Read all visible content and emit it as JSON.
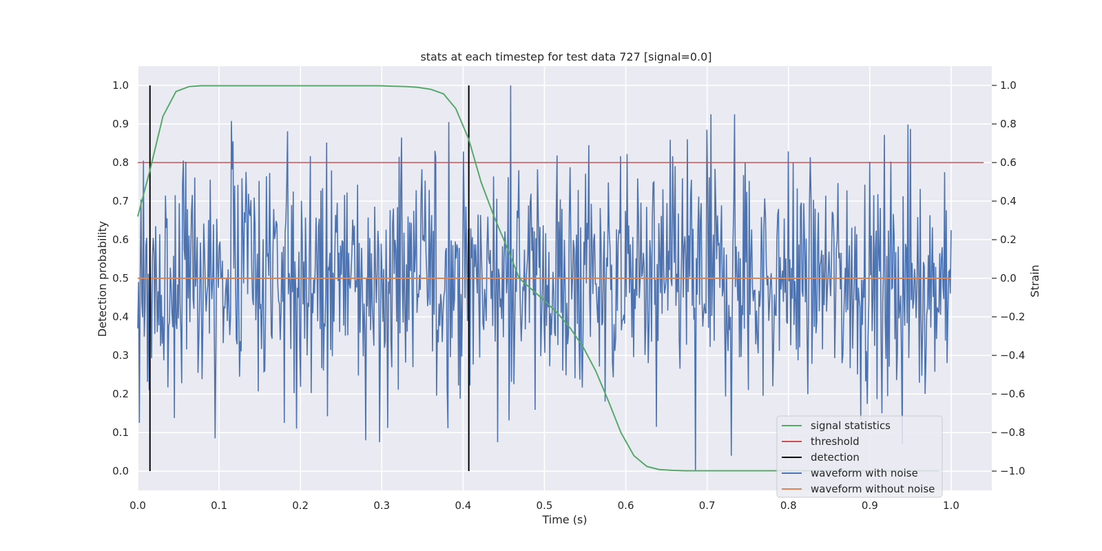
{
  "chart_data": {
    "type": "line",
    "title": "stats at each timestep for test data 727 [signal=0.0]",
    "xlabel": "Time (s)",
    "ylabel": "Detection probability",
    "y2label": "Strain",
    "xlim": [
      0.0,
      1.05
    ],
    "ylim": [
      -0.05,
      1.05
    ],
    "y2lim": [
      -1.1,
      1.1
    ],
    "x_ticks": [
      0.0,
      0.1,
      0.2,
      0.3,
      0.4,
      0.5,
      0.6,
      0.7,
      0.8,
      0.9,
      1.0
    ],
    "x_tick_labels": [
      "0.0",
      "0.1",
      "0.2",
      "0.3",
      "0.4",
      "0.5",
      "0.6",
      "0.7",
      "0.8",
      "0.9",
      "1.0"
    ],
    "y_ticks": [
      0.0,
      0.1,
      0.2,
      0.3,
      0.4,
      0.5,
      0.6,
      0.7,
      0.8,
      0.9,
      1.0
    ],
    "y_tick_labels": [
      "0.0",
      "0.1",
      "0.2",
      "0.3",
      "0.4",
      "0.5",
      "0.6",
      "0.7",
      "0.8",
      "0.9",
      "1.0"
    ],
    "y2_ticks": [
      -1.0,
      -0.8,
      -0.6,
      -0.4,
      -0.2,
      0.0,
      0.2,
      0.4,
      0.6,
      0.8,
      1.0
    ],
    "y2_tick_labels": [
      "−1.0",
      "−0.8",
      "−0.6",
      "−0.4",
      "−0.2",
      "0.0",
      "0.2",
      "0.4",
      "0.6",
      "0.8",
      "1.0"
    ],
    "grid": true,
    "legend_position": "lower-right",
    "series": [
      {
        "name": "signal statistics",
        "axis": "left",
        "color": "#55a868",
        "x": [
          0.0,
          0.015,
          0.031,
          0.047,
          0.063,
          0.078,
          0.094,
          0.11,
          0.125,
          0.141,
          0.157,
          0.172,
          0.188,
          0.204,
          0.219,
          0.235,
          0.25,
          0.266,
          0.282,
          0.297,
          0.313,
          0.329,
          0.344,
          0.36,
          0.376,
          0.391,
          0.407,
          0.422,
          0.438,
          0.454,
          0.469,
          0.485,
          0.501,
          0.516,
          0.532,
          0.548,
          0.563,
          0.579,
          0.594,
          0.61,
          0.626,
          0.641,
          0.657,
          0.673,
          0.688,
          0.704,
          0.72,
          0.735,
          0.751,
          0.767,
          0.782,
          0.798,
          0.813,
          0.829,
          0.845,
          0.86,
          0.876,
          0.892,
          0.907,
          0.923,
          0.939,
          0.954,
          0.97,
          0.985
        ],
        "values": [
          0.66,
          0.78,
          0.92,
          0.984,
          0.997,
          0.999,
          0.999,
          0.999,
          0.999,
          0.999,
          0.999,
          0.999,
          0.999,
          0.999,
          0.999,
          0.999,
          0.999,
          0.999,
          0.999,
          0.999,
          0.998,
          0.997,
          0.995,
          0.99,
          0.978,
          0.94,
          0.86,
          0.75,
          0.66,
          0.58,
          0.5,
          0.47,
          0.44,
          0.41,
          0.37,
          0.32,
          0.26,
          0.18,
          0.1,
          0.04,
          0.012,
          0.004,
          0.002,
          0.001,
          0.001,
          0.001,
          0.001,
          0.001,
          0.001,
          0.001,
          0.001,
          0.001,
          0.001,
          0.001,
          0.001,
          0.001,
          0.001,
          0.001,
          0.001,
          0.001,
          0.001,
          0.001,
          0.001,
          0.001
        ]
      },
      {
        "name": "threshold",
        "axis": "left",
        "color": "#c44e52",
        "x": [
          0.0,
          1.04
        ],
        "values": [
          0.8,
          0.8
        ]
      },
      {
        "name": "detection",
        "axis": "left",
        "color": "#000000",
        "type": "vlines",
        "x": [
          0.015,
          0.407
        ],
        "ymin": 0.0,
        "ymax": 1.0
      },
      {
        "name": "waveform with noise",
        "axis": "right",
        "color": "#4c72b0",
        "x_start": 0.0,
        "x_end": 1.0,
        "n_points": 1000,
        "mean": 0.0,
        "std": 0.3,
        "min": -1.0,
        "max": 1.0,
        "noise_peaks": [
          {
            "x": 0.002,
            "y": -0.75
          },
          {
            "x": 0.007,
            "y": 0.61
          },
          {
            "x": 0.014,
            "y": -0.58
          },
          {
            "x": 0.056,
            "y": 0.61
          },
          {
            "x": 0.095,
            "y": -0.83
          },
          {
            "x": 0.117,
            "y": 0.71
          },
          {
            "x": 0.18,
            "y": -0.75
          },
          {
            "x": 0.28,
            "y": -0.84
          },
          {
            "x": 0.324,
            "y": 0.73
          },
          {
            "x": 0.382,
            "y": 0.81
          },
          {
            "x": 0.458,
            "y": 1.0
          },
          {
            "x": 0.555,
            "y": 0.69
          },
          {
            "x": 0.638,
            "y": -0.77
          },
          {
            "x": 0.676,
            "y": 0.72
          },
          {
            "x": 0.686,
            "y": -1.0
          },
          {
            "x": 0.7,
            "y": 0.77
          },
          {
            "x": 0.73,
            "y": -0.92
          },
          {
            "x": 0.734,
            "y": 0.85
          },
          {
            "x": 0.915,
            "y": -0.7
          },
          {
            "x": 0.94,
            "y": -0.86
          },
          {
            "x": 0.992,
            "y": 0.55
          }
        ]
      },
      {
        "name": "waveform without noise",
        "axis": "right",
        "color": "#dd8452",
        "x": [
          0.0,
          1.0
        ],
        "values": [
          0.0,
          0.0
        ]
      }
    ]
  }
}
